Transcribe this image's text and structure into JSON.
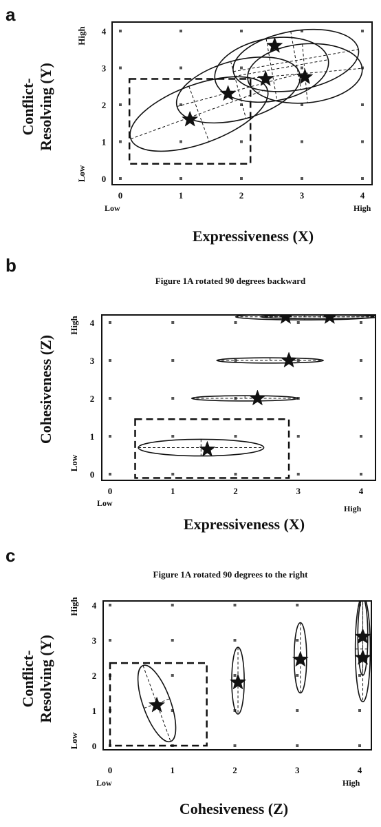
{
  "panels": [
    {
      "id": "a",
      "letter": "a",
      "subtitle": "",
      "xlabel": "Expressiveness (X)",
      "ylabel_lines": [
        "Conflict-",
        "Resolving (Y)"
      ],
      "xticks": [
        "0",
        "1",
        "2",
        "3",
        "4"
      ],
      "yticks": [
        "0",
        "1",
        "2",
        "3",
        "4"
      ],
      "x_low": "Low",
      "x_high": "High",
      "y_low": "Low",
      "y_high": "High"
    },
    {
      "id": "b",
      "letter": "b",
      "subtitle": "Figure 1A rotated 90 degrees backward",
      "xlabel": "Expressiveness (X)",
      "ylabel_lines": [
        "Cohesiveness (Z)"
      ],
      "xticks": [
        "0",
        "1",
        "2",
        "3",
        "4"
      ],
      "yticks": [
        "0",
        "1",
        "2",
        "3",
        "4"
      ],
      "x_low": "Low",
      "x_high": "High",
      "y_low": "Low",
      "y_high": "High"
    },
    {
      "id": "c",
      "letter": "c",
      "subtitle": "Figure 1A rotated 90 degrees to the right",
      "xlabel": "Cohesiveness (Z)",
      "ylabel_lines": [
        "Conflict-",
        "Resolving (Y)"
      ],
      "xticks": [
        "0",
        "1",
        "2",
        "3",
        "4"
      ],
      "yticks": [
        "0",
        "1",
        "2",
        "3",
        "4"
      ],
      "x_low": "Low",
      "x_high": "High",
      "y_low": "Low",
      "y_high": "High"
    }
  ],
  "chart_data": [
    {
      "panel": "a",
      "type": "scatter",
      "xlabel": "Expressiveness (X)",
      "ylabel": "Conflict-Resolving (Y)",
      "xlim": [
        0,
        4
      ],
      "ylim": [
        0,
        4
      ],
      "stars": [
        {
          "x": 1.15,
          "y": 1.6
        },
        {
          "x": 1.78,
          "y": 2.3
        },
        {
          "x": 2.4,
          "y": 2.7
        },
        {
          "x": 2.55,
          "y": 3.6
        },
        {
          "x": 3.05,
          "y": 2.75
        }
      ],
      "ellipses": [
        {
          "cx": 1.3,
          "cy": 1.75,
          "rx": 1.2,
          "ry": 0.8,
          "angle_deg": 20
        },
        {
          "cx": 1.95,
          "cy": 2.4,
          "rx": 1.05,
          "ry": 0.8,
          "angle_deg": 15
        },
        {
          "cx": 2.5,
          "cy": 2.95,
          "rx": 0.95,
          "ry": 0.85,
          "angle_deg": 10
        },
        {
          "cx": 2.9,
          "cy": 3.2,
          "rx": 1.05,
          "ry": 0.8,
          "angle_deg": 10
        },
        {
          "cx": 3.05,
          "cy": 2.85,
          "rx": 0.95,
          "ry": 0.8,
          "angle_deg": 5
        }
      ],
      "box": {
        "x0": 0.15,
        "x1": 2.15,
        "y0": 0.4,
        "y1": 2.7
      },
      "grid_points": "integer lattice 0-4 (x) by 0-4 (y)"
    },
    {
      "panel": "b",
      "type": "scatter",
      "subtitle": "Figure 1A rotated 90 degrees backward",
      "xlabel": "Expressiveness (X)",
      "ylabel": "Cohesiveness (Z)",
      "xlim": [
        0,
        4
      ],
      "ylim": [
        0,
        4
      ],
      "stars": [
        {
          "x": 1.55,
          "y": 0.65
        },
        {
          "x": 2.35,
          "y": 2.0
        },
        {
          "x": 2.85,
          "y": 3.0
        },
        {
          "x": 2.8,
          "y": 4.15
        },
        {
          "x": 3.5,
          "y": 4.15
        }
      ],
      "ellipses": [
        {
          "cx": 1.45,
          "cy": 0.7,
          "rx": 1.0,
          "ry": 0.22,
          "angle_deg": 0
        },
        {
          "cx": 2.15,
          "cy": 2.0,
          "rx": 0.85,
          "ry": 0.07,
          "angle_deg": 0
        },
        {
          "cx": 2.55,
          "cy": 3.0,
          "rx": 0.85,
          "ry": 0.07,
          "angle_deg": 0
        },
        {
          "cx": 3.1,
          "cy": 4.15,
          "rx": 1.1,
          "ry": 0.08,
          "angle_deg": 0
        },
        {
          "cx": 3.35,
          "cy": 4.15,
          "rx": 0.95,
          "ry": 0.05,
          "angle_deg": 0
        }
      ],
      "box": {
        "x0": 0.4,
        "x1": 2.85,
        "y0": -0.1,
        "y1": 1.45
      },
      "grid_points": "integer lattice 0-4 (x) by 0-4 (z)"
    },
    {
      "panel": "c",
      "type": "scatter",
      "subtitle": "Figure 1A rotated 90 degrees to the right",
      "xlabel": "Cohesiveness (Z)",
      "ylabel": "Conflict-Resolving (Y)",
      "xlim": [
        0,
        4
      ],
      "ylim": [
        0,
        4
      ],
      "stars": [
        {
          "x": 0.75,
          "y": 1.15
        },
        {
          "x": 2.05,
          "y": 1.8
        },
        {
          "x": 3.05,
          "y": 2.45
        },
        {
          "x": 4.05,
          "y": 2.5
        },
        {
          "x": 4.05,
          "y": 3.1
        }
      ],
      "ellipses": [
        {
          "cx": 0.75,
          "cy": 1.2,
          "rx": 0.22,
          "ry": 1.15,
          "angle_deg": 20
        },
        {
          "cx": 2.05,
          "cy": 1.85,
          "rx": 0.1,
          "ry": 0.95,
          "angle_deg": 0
        },
        {
          "cx": 3.05,
          "cy": 2.5,
          "rx": 0.1,
          "ry": 1.0,
          "angle_deg": 0
        },
        {
          "cx": 4.05,
          "cy": 2.75,
          "rx": 0.12,
          "ry": 1.5,
          "angle_deg": 0
        },
        {
          "cx": 4.05,
          "cy": 3.1,
          "rx": 0.08,
          "ry": 1.1,
          "angle_deg": 0
        }
      ],
      "box": {
        "x0": 0.0,
        "x1": 1.55,
        "y0": 0.0,
        "y1": 2.35
      },
      "grid_points": "integer lattice 0-4 (z) by 0-4 (y)"
    }
  ]
}
